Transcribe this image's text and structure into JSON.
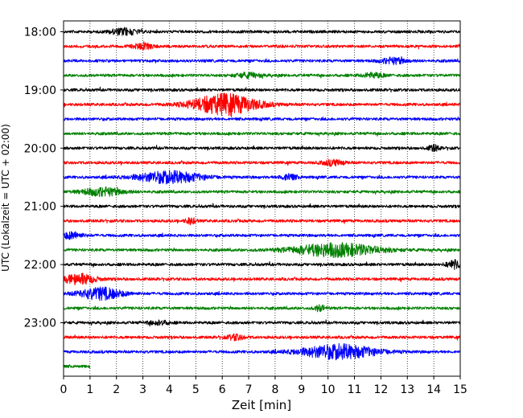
{
  "chart_data": {
    "type": "line",
    "title": "",
    "xlabel": "Zeit  [min]",
    "ylabel": "UTC (Lokalzeit = UTC + 02:00)",
    "xlim": [
      0,
      15
    ],
    "x_ticks": [
      "0",
      "1",
      "2",
      "3",
      "4",
      "5",
      "6",
      "7",
      "8",
      "9",
      "10",
      "11",
      "12",
      "13",
      "14",
      "15"
    ],
    "y_tick_labels": [
      "18:00",
      "19:00",
      "20:00",
      "21:00",
      "22:00",
      "23:00"
    ],
    "row_start": "18:00",
    "row_interval_min": 15,
    "grid": "vertical dotted",
    "series_colors": [
      "#000000",
      "#ff0000",
      "#0000ff",
      "#008000"
    ],
    "rows": [
      {
        "start": "18:00",
        "color": "#000000",
        "duration_min": 15,
        "events": [
          [
            2.3,
            1.0,
            0.5
          ]
        ]
      },
      {
        "start": "18:15",
        "color": "#ff0000",
        "duration_min": 15,
        "events": [
          [
            3.0,
            0.8,
            0.4
          ]
        ]
      },
      {
        "start": "18:30",
        "color": "#0000ff",
        "duration_min": 15,
        "events": [
          [
            12.5,
            0.9,
            0.5
          ]
        ]
      },
      {
        "start": "18:45",
        "color": "#008000",
        "duration_min": 15,
        "events": [
          [
            7.0,
            0.7,
            0.5
          ],
          [
            11.7,
            0.7,
            0.4
          ]
        ]
      },
      {
        "start": "19:00",
        "color": "#000000",
        "duration_min": 15,
        "events": []
      },
      {
        "start": "19:15",
        "color": "#ff0000",
        "duration_min": 15,
        "events": [
          [
            6.1,
            3.2,
            1.2
          ]
        ]
      },
      {
        "start": "19:30",
        "color": "#0000ff",
        "duration_min": 15,
        "events": []
      },
      {
        "start": "19:45",
        "color": "#008000",
        "duration_min": 15,
        "events": []
      },
      {
        "start": "20:00",
        "color": "#000000",
        "duration_min": 15,
        "events": [
          [
            14.0,
            0.9,
            0.2
          ]
        ]
      },
      {
        "start": "20:15",
        "color": "#ff0000",
        "duration_min": 15,
        "events": [
          [
            10.2,
            0.8,
            0.4
          ]
        ]
      },
      {
        "start": "20:30",
        "color": "#0000ff",
        "duration_min": 15,
        "events": [
          [
            4.0,
            1.8,
            1.2
          ],
          [
            8.5,
            1.0,
            0.3
          ]
        ]
      },
      {
        "start": "20:45",
        "color": "#008000",
        "duration_min": 15,
        "events": [
          [
            1.5,
            1.2,
            0.8
          ]
        ]
      },
      {
        "start": "21:00",
        "color": "#000000",
        "duration_min": 15,
        "events": []
      },
      {
        "start": "21:15",
        "color": "#ff0000",
        "duration_min": 15,
        "events": [
          [
            4.8,
            0.9,
            0.2
          ]
        ]
      },
      {
        "start": "21:30",
        "color": "#0000ff",
        "duration_min": 15,
        "events": [
          [
            0.3,
            1.0,
            0.4
          ]
        ]
      },
      {
        "start": "21:45",
        "color": "#008000",
        "duration_min": 15,
        "events": [
          [
            10.3,
            2.0,
            1.6
          ]
        ]
      },
      {
        "start": "22:00",
        "color": "#000000",
        "duration_min": 15,
        "events": [
          [
            14.8,
            1.2,
            0.3
          ]
        ]
      },
      {
        "start": "22:15",
        "color": "#ff0000",
        "duration_min": 15,
        "events": [
          [
            0.6,
            1.6,
            0.6
          ]
        ]
      },
      {
        "start": "22:30",
        "color": "#0000ff",
        "duration_min": 15,
        "events": [
          [
            1.4,
            1.8,
            0.8
          ]
        ]
      },
      {
        "start": "22:45",
        "color": "#008000",
        "duration_min": 15,
        "events": [
          [
            9.7,
            0.9,
            0.2
          ]
        ]
      },
      {
        "start": "23:00",
        "color": "#000000",
        "duration_min": 15,
        "events": [
          [
            3.6,
            0.6,
            0.4
          ]
        ]
      },
      {
        "start": "23:15",
        "color": "#ff0000",
        "duration_min": 15,
        "events": [
          [
            6.5,
            0.8,
            0.3
          ]
        ]
      },
      {
        "start": "23:30",
        "color": "#0000ff",
        "duration_min": 15,
        "events": [
          [
            10.4,
            2.2,
            1.4
          ]
        ]
      },
      {
        "start": "23:45",
        "color": "#008000",
        "duration_min": 1.0,
        "events": []
      }
    ]
  }
}
